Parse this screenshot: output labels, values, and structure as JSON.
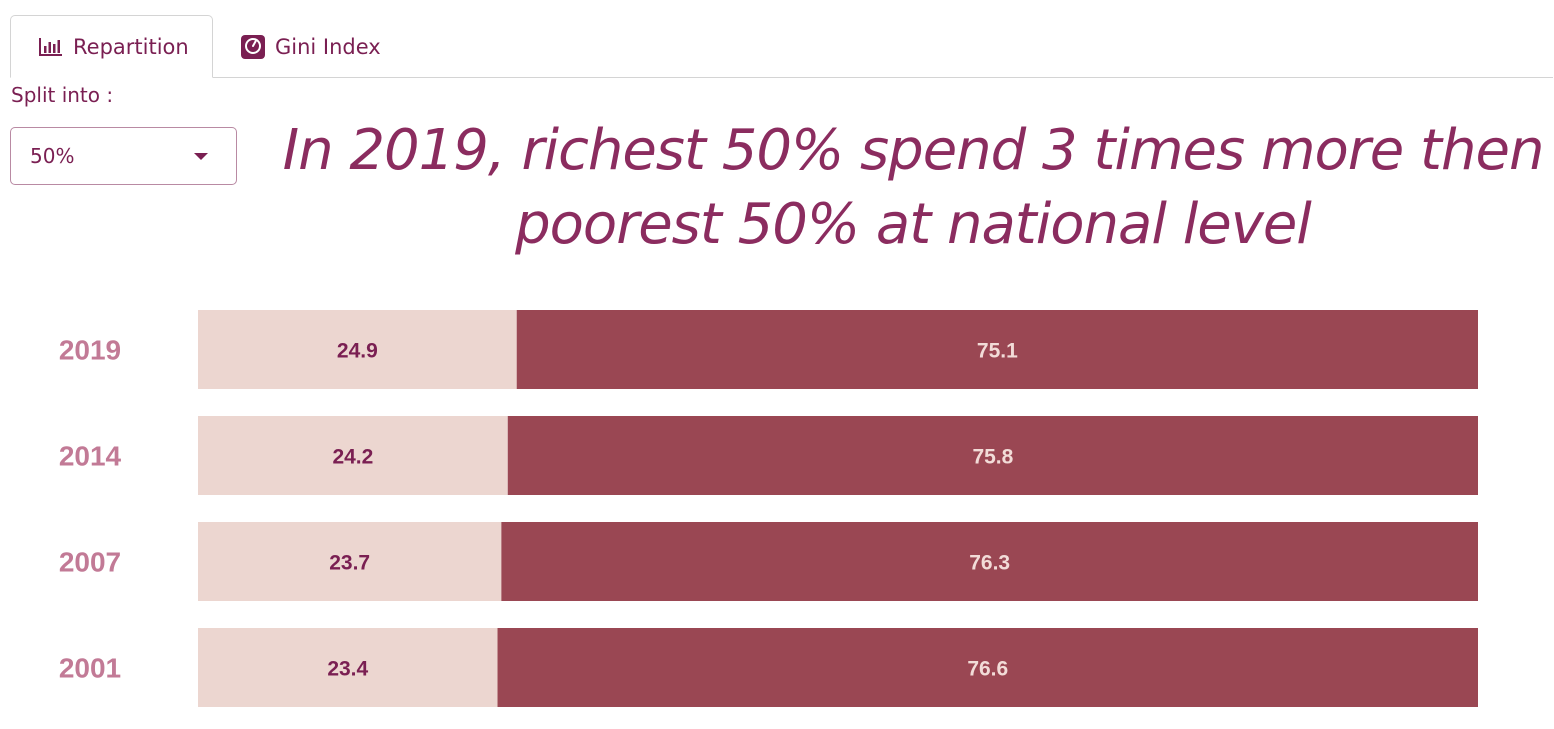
{
  "tabs": [
    {
      "label": "Repartition",
      "icon": "bar-chart-icon",
      "active": true
    },
    {
      "label": "Gini Index",
      "icon": "scale-icon",
      "active": false
    }
  ],
  "split": {
    "label": "Split into :",
    "selected": "50%"
  },
  "headline": {
    "line1": "In 2019, richest 50% spend 3 times more then",
    "line2": "poorest 50% at national level"
  },
  "colors": {
    "accent": "#7a1f52",
    "headline": "#8b2c5f",
    "poorest_bar": "#ecd6d0",
    "richest_bar": "#9a4753",
    "year_label": "#c27a96",
    "poorest_text": "#7a1f52",
    "richest_text": "#f2dcd8"
  },
  "chart_data": {
    "type": "bar",
    "stacked": true,
    "orientation": "horizontal",
    "categories": [
      "2019",
      "2014",
      "2007",
      "2001"
    ],
    "series": [
      {
        "values": [
          24.9,
          24.2,
          23.7,
          23.4
        ]
      },
      {
        "values": [
          75.1,
          75.8,
          76.3,
          76.6
        ]
      }
    ],
    "xlim": [
      0,
      100
    ],
    "grid": false
  }
}
